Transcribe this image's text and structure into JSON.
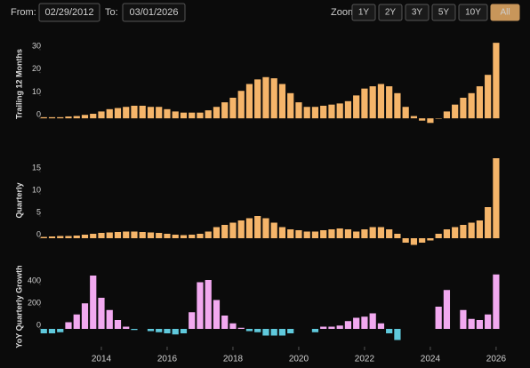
{
  "range_selector": {
    "from_label": "From:",
    "from_value": "02/29/2012",
    "to_label": "To:",
    "to_value": "03/01/2026",
    "zoom_label": "Zoom:",
    "buttons": [
      "1Y",
      "2Y",
      "3Y",
      "5Y",
      "10Y",
      "All"
    ],
    "active": "All"
  },
  "chart_data": [
    {
      "type": "bar",
      "y_label": "Trailing 12 Months",
      "color": "#f5b56a",
      "x": [
        2012.25,
        2012.5,
        2012.75,
        2013,
        2013.25,
        2013.5,
        2013.75,
        2014,
        2014.25,
        2014.5,
        2014.75,
        2015,
        2015.25,
        2015.5,
        2015.75,
        2016,
        2016.25,
        2016.5,
        2016.75,
        2017,
        2017.25,
        2017.5,
        2017.75,
        2018,
        2018.25,
        2018.5,
        2018.75,
        2019,
        2019.25,
        2019.5,
        2019.75,
        2020,
        2020.25,
        2020.5,
        2020.75,
        2021,
        2021.25,
        2021.5,
        2021.75,
        2022,
        2022.25,
        2022.5,
        2022.75,
        2023,
        2023.25,
        2023.5,
        2023.75,
        2024,
        2024.25,
        2024.5,
        2024.75,
        2025,
        2025.25,
        2025.5,
        2025.75,
        2026
      ],
      "values": [
        0.5,
        0.5,
        0.5,
        0.8,
        1,
        1.5,
        2,
        3,
        4,
        4.5,
        5,
        5.5,
        5.5,
        5,
        5,
        4,
        3,
        2.5,
        2.5,
        2.5,
        3.5,
        5,
        7,
        9,
        12,
        15,
        17,
        18,
        17.5,
        15,
        11,
        7,
        5,
        5,
        5.5,
        6,
        6.5,
        7.5,
        10,
        13,
        14,
        15,
        14,
        11,
        5,
        1,
        -1,
        -2,
        0,
        3,
        6,
        9,
        11,
        14,
        19,
        33
      ],
      "xlim": [
        2012,
        2026.3
      ],
      "ylim": [
        -5,
        35
      ],
      "yticks": [
        0,
        10,
        20,
        30
      ]
    },
    {
      "type": "bar",
      "y_label": "Quarterly",
      "color": "#f5b56a",
      "x": [
        2012.25,
        2012.5,
        2012.75,
        2013,
        2013.25,
        2013.5,
        2013.75,
        2014,
        2014.25,
        2014.5,
        2014.75,
        2015,
        2015.25,
        2015.5,
        2015.75,
        2016,
        2016.25,
        2016.5,
        2016.75,
        2017,
        2017.25,
        2017.5,
        2017.75,
        2018,
        2018.25,
        2018.5,
        2018.75,
        2019,
        2019.25,
        2019.5,
        2019.75,
        2020,
        2020.25,
        2020.5,
        2020.75,
        2021,
        2021.25,
        2021.5,
        2021.75,
        2022,
        2022.25,
        2022.5,
        2022.75,
        2023,
        2023.25,
        2023.5,
        2023.75,
        2024,
        2024.25,
        2024.5,
        2024.75,
        2025,
        2025.25,
        2025.5,
        2025.75,
        2026
      ],
      "values": [
        0.3,
        0.4,
        0.5,
        0.5,
        0.6,
        0.8,
        1,
        1.2,
        1.3,
        1.4,
        1.5,
        1.5,
        1.4,
        1.3,
        1.2,
        1,
        0.8,
        0.7,
        0.8,
        1,
        1.5,
        2.5,
        3,
        3.5,
        4,
        4.5,
        5,
        4.5,
        3.5,
        2.5,
        2,
        1.8,
        1.5,
        1.5,
        1.8,
        2,
        2.2,
        2,
        1.5,
        2,
        2.5,
        2.5,
        2,
        1,
        -1,
        -1.5,
        -1,
        -0.5,
        1,
        2,
        2.5,
        3,
        3.5,
        4,
        7,
        18
      ],
      "xlim": [
        2012,
        2026.3
      ],
      "ylim": [
        -2,
        19
      ],
      "yticks": [
        0,
        5,
        10,
        15
      ]
    },
    {
      "type": "bar",
      "y_label": "YoY Quarterly Growth",
      "color": "#f2a9f0",
      "negative_color": "#5fc9dc",
      "x": [
        2012.25,
        2012.5,
        2012.75,
        2013,
        2013.25,
        2013.5,
        2013.75,
        2014,
        2014.25,
        2014.5,
        2014.75,
        2015,
        2015.25,
        2015.5,
        2015.75,
        2016,
        2016.25,
        2016.5,
        2016.75,
        2017,
        2017.25,
        2017.5,
        2017.75,
        2018,
        2018.25,
        2018.5,
        2018.75,
        2019,
        2019.25,
        2019.5,
        2019.75,
        2020,
        2020.25,
        2020.5,
        2020.75,
        2021,
        2021.25,
        2021.5,
        2021.75,
        2022,
        2022.25,
        2022.5,
        2022.75,
        2023,
        2023.25,
        2023.5,
        2023.75,
        2024,
        2024.25,
        2024.5,
        2024.75,
        2025,
        2025.25,
        2025.5,
        2025.75,
        2026
      ],
      "values": [
        -40,
        -40,
        -30,
        60,
        130,
        230,
        480,
        280,
        170,
        80,
        20,
        -10,
        null,
        -20,
        -30,
        -40,
        -50,
        -40,
        150,
        420,
        440,
        260,
        120,
        50,
        10,
        -20,
        -30,
        -60,
        -60,
        -60,
        -40,
        null,
        null,
        -30,
        20,
        20,
        30,
        70,
        100,
        110,
        140,
        50,
        -40,
        -100,
        null,
        null,
        null,
        null,
        200,
        350,
        null,
        170,
        90,
        80,
        130,
        490
      ],
      "xlim": [
        2012,
        2026.3
      ],
      "ylim": [
        -120,
        520
      ],
      "yticks": [
        0,
        200,
        400
      ],
      "xticks": [
        2014,
        2016,
        2018,
        2020,
        2022,
        2024,
        2026
      ]
    }
  ]
}
